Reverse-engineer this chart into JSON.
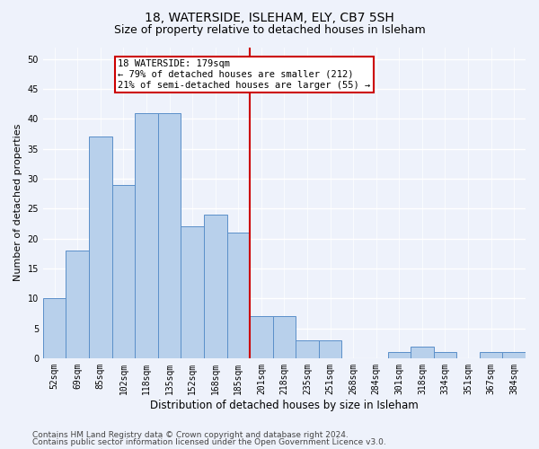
{
  "title1": "18, WATERSIDE, ISLEHAM, ELY, CB7 5SH",
  "title2": "Size of property relative to detached houses in Isleham",
  "xlabel": "Distribution of detached houses by size in Isleham",
  "ylabel": "Number of detached properties",
  "categories": [
    "52sqm",
    "69sqm",
    "85sqm",
    "102sqm",
    "118sqm",
    "135sqm",
    "152sqm",
    "168sqm",
    "185sqm",
    "201sqm",
    "218sqm",
    "235sqm",
    "251sqm",
    "268sqm",
    "284sqm",
    "301sqm",
    "318sqm",
    "334sqm",
    "351sqm",
    "367sqm",
    "384sqm"
  ],
  "values": [
    10,
    18,
    37,
    29,
    41,
    41,
    22,
    24,
    21,
    7,
    7,
    3,
    3,
    0,
    0,
    1,
    2,
    1,
    0,
    1,
    1
  ],
  "bar_color": "#b8d0eb",
  "bar_edge_color": "#5b8fc9",
  "vline_x": 8.5,
  "vline_color": "#cc0000",
  "annotation_box_text": "18 WATERSIDE: 179sqm\n← 79% of detached houses are smaller (212)\n21% of semi-detached houses are larger (55) →",
  "annotation_box_color": "#cc0000",
  "ylim": [
    0,
    52
  ],
  "yticks": [
    0,
    5,
    10,
    15,
    20,
    25,
    30,
    35,
    40,
    45,
    50
  ],
  "footer1": "Contains HM Land Registry data © Crown copyright and database right 2024.",
  "footer2": "Contains public sector information licensed under the Open Government Licence v3.0.",
  "bg_color": "#eef2fb",
  "grid_color": "#ffffff",
  "title1_fontsize": 10,
  "title2_fontsize": 9,
  "xlabel_fontsize": 8.5,
  "ylabel_fontsize": 8,
  "tick_fontsize": 7,
  "footer_fontsize": 6.5,
  "annot_fontsize": 7.5
}
